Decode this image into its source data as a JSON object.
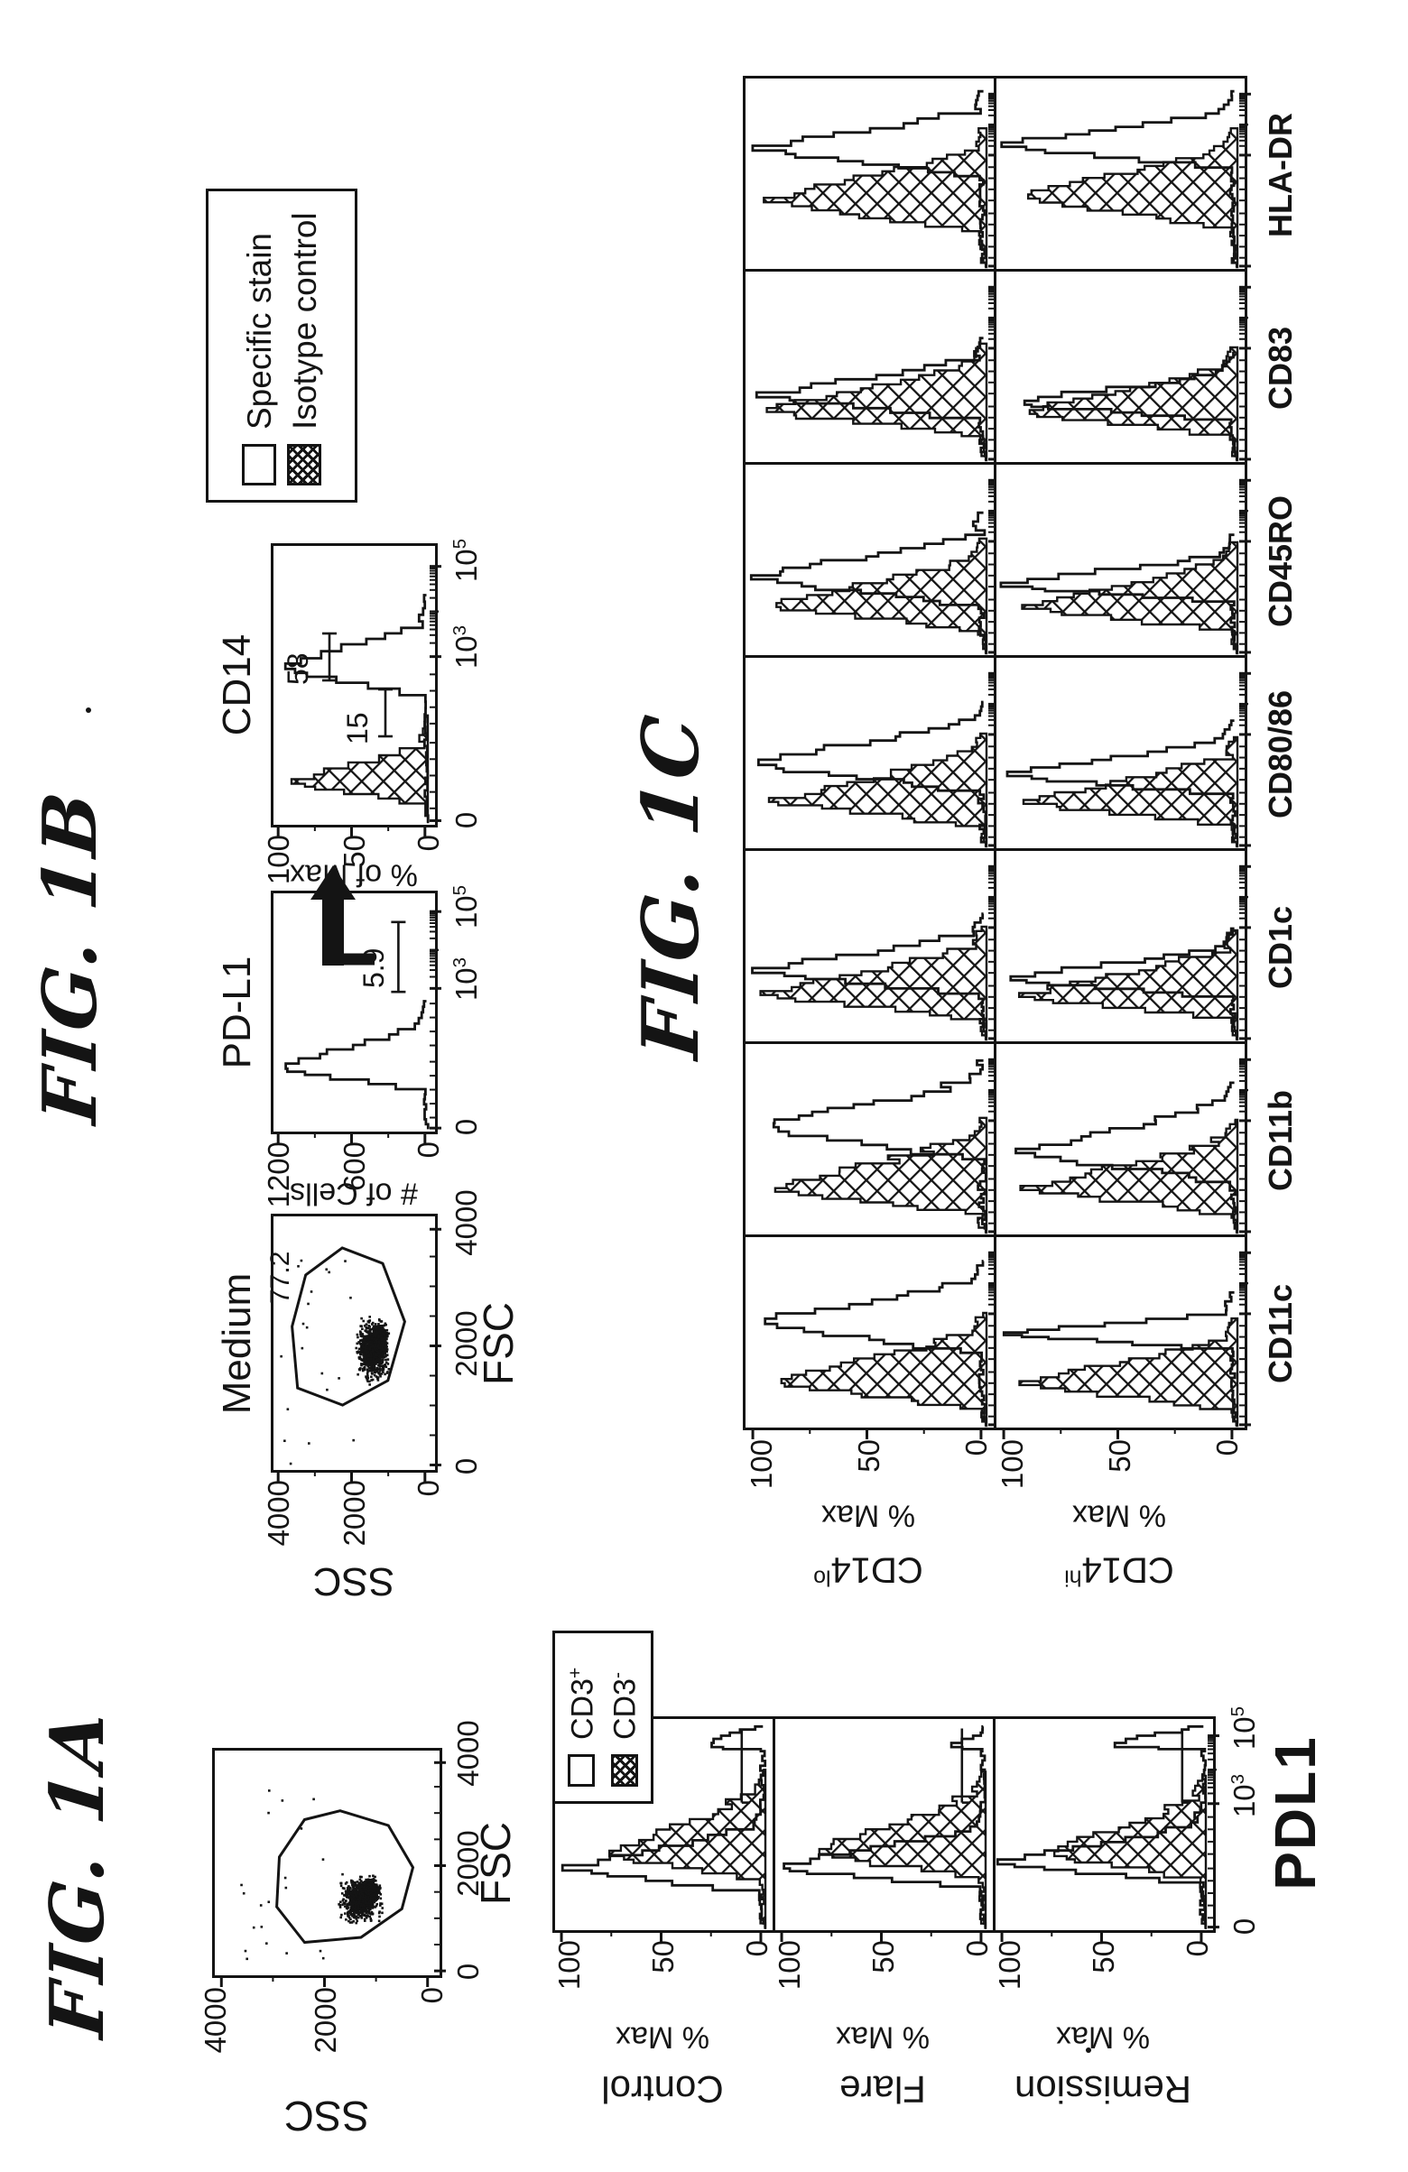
{
  "page": {
    "kind": "scanned patent figure sheet",
    "orientation": "figure rotated 90deg CCW on portrait page",
    "ink": "#141414",
    "paper": "#ffffff"
  },
  "figures": {
    "fig1a": {
      "label": "FIG. 1A",
      "scatter": {
        "xlabel": "FSC",
        "ylabel": "SSC",
        "xticks": [
          "0",
          "2000",
          "4000"
        ],
        "yticks": [
          "4000",
          "2000",
          "0"
        ]
      },
      "legend": {
        "items": [
          {
            "swatch": "open",
            "text": "CD3",
            "sup": "+"
          },
          {
            "swatch": "hatch",
            "text": "CD3",
            "sup": "-"
          }
        ]
      },
      "panels": [
        {
          "name": "Control"
        },
        {
          "name": "Flare"
        },
        {
          "name": "Remission"
        }
      ],
      "ylabel": "% Max",
      "yticks": [
        "100",
        "50",
        "0"
      ],
      "xticks": [
        {
          "t": "0"
        },
        {
          "t": "10",
          "sup": "3"
        },
        {
          "t": "10",
          "sup": "5"
        }
      ],
      "xlabel": "PDL1"
    },
    "fig1b": {
      "label": "FIG. 1B",
      "medium": {
        "title": "Medium",
        "xlabel": "FSC",
        "ylabel": "SSC",
        "xticks": [
          "0",
          "2000",
          "4000"
        ],
        "yticks": [
          "4000",
          "2000",
          "0"
        ],
        "gate_percent": "77.2"
      },
      "pdl1": {
        "title": "PD-L1",
        "ylabel": "# of Cells",
        "yticks": [
          "1200",
          "600",
          "0"
        ],
        "xticks": [
          {
            "t": "0"
          },
          {
            "t": "10",
            "sup": "3"
          },
          {
            "t": "10",
            "sup": "5"
          }
        ],
        "positive_percent": "5.9"
      },
      "cd14": {
        "title": "CD14",
        "ylabel": "% of Max",
        "yticks": [
          "100",
          "50",
          "0"
        ],
        "xticks": [
          {
            "t": "0"
          },
          {
            "t": "10",
            "sup": "3"
          },
          {
            "t": "10",
            "sup": "5"
          }
        ],
        "annotations": [
          {
            "value": "58"
          },
          {
            "value": "15"
          }
        ]
      },
      "legend": {
        "items": [
          {
            "swatch": "open",
            "text": "Specific stain"
          },
          {
            "swatch": "hatch",
            "text": "Isotype control"
          }
        ]
      }
    },
    "fig1c": {
      "label": "FIG. 1C",
      "columns": [
        "CD11c",
        "CD11b",
        "CD1c",
        "CD80/86",
        "CD45RO",
        "CD83",
        "HLA-DR"
      ],
      "rows": [
        {
          "text": "CD14",
          "sup": "lo",
          "ylabel": "% Max"
        },
        {
          "text": "CD14",
          "sup": "hi",
          "ylabel": "% Max"
        }
      ],
      "yticks": [
        "100",
        "50",
        "0"
      ]
    }
  },
  "chart_data": [
    {
      "id": "fig1a-scatter",
      "type": "scatter",
      "xlabel": "FSC",
      "ylabel": "SSC",
      "xlim": [
        0,
        4000
      ],
      "ylim": [
        0,
        4000
      ],
      "cluster": {
        "cx": 0.34,
        "cy": 0.66,
        "sx": 0.13,
        "sy": 0.11,
        "n": 850
      },
      "gate": [
        [
          16,
          40
        ],
        [
          32,
          28
        ],
        [
          54,
          30
        ],
        [
          70,
          40
        ],
        [
          76,
          58
        ],
        [
          68,
          80
        ],
        [
          50,
          90
        ],
        [
          30,
          86
        ],
        [
          18,
          66
        ]
      ]
    },
    {
      "id": "fig1b-medium-scatter",
      "type": "scatter",
      "title": "Medium",
      "xlabel": "FSC",
      "ylabel": "SSC",
      "xlim": [
        0,
        4000
      ],
      "ylim": [
        0,
        4000
      ],
      "cluster": {
        "cx": 0.48,
        "cy": 0.63,
        "sx": 0.15,
        "sy": 0.12,
        "n": 950
      },
      "gate": [
        [
          34,
          16
        ],
        [
          58,
          11
        ],
        [
          79,
          21
        ],
        [
          89,
          44
        ],
        [
          83,
          70
        ],
        [
          60,
          84
        ],
        [
          37,
          74
        ],
        [
          27,
          44
        ]
      ],
      "gate_label": "77.2"
    },
    {
      "id": "fig1b-pdl1",
      "type": "histogram",
      "title": "PD-L1",
      "x_axis": [
        "0",
        "10^3",
        "10^5"
      ],
      "y_axis": [
        "0",
        "600",
        "1200"
      ],
      "open": [
        27,
        11,
        17,
        95
      ],
      "positive_percent": 5.9,
      "bracket_pct": [
        60,
        90,
        80
      ]
    },
    {
      "id": "fig1b-cd14",
      "type": "histogram-overlay",
      "title": "CD14",
      "x_axis": [
        "0",
        "10^3",
        "10^5"
      ],
      "y_axis": [
        "0",
        "50",
        "100"
      ],
      "open": [
        57,
        12,
        15,
        94
      ],
      "hatch": [
        15,
        9,
        13,
        88
      ],
      "annotations": [
        {
          "value": 58,
          "x": 52,
          "y": 12
        },
        {
          "value": 15,
          "x": 32,
          "y": 46
        }
      ]
    },
    {
      "id": "fig1a-pdl1-panels",
      "type": "histogram-overlay",
      "series": [
        "CD3+",
        "CD3-"
      ],
      "x_axis": [
        "0",
        "10^3",
        "10^5"
      ],
      "y_axis": [
        "0",
        "50",
        "100"
      ],
      "bracket_pct": [
        62,
        98,
        88
      ],
      "panels": [
        {
          "name": "Control",
          "o": [
            29,
            12,
            20,
            95
          ],
          "h": [
            36,
            14,
            30,
            72
          ],
          "rspike": 30
        },
        {
          "name": "Flare",
          "o": [
            30,
            11,
            18,
            97
          ],
          "h": [
            37,
            14,
            28,
            80
          ],
          "rspike": 12
        },
        {
          "name": "Remission",
          "o": [
            32,
            11,
            18,
            96
          ],
          "h": [
            36,
            13,
            27,
            76
          ],
          "rspike": 40
        }
      ]
    },
    {
      "id": "fig1c-grid",
      "type": "histogram-overlay-grid",
      "series": [
        "Specific stain",
        "Isotype control"
      ],
      "x_axis_per_cell": "log fluorescence",
      "y_axis": [
        "0",
        "50",
        "100"
      ],
      "cells": [
        {
          "col": "CD11c",
          "lo": {
            "h": [
              24,
              16,
              26,
              86
            ],
            "o": [
              56,
              18,
              22,
              93
            ],
            "jag": 10
          },
          "hi": {
            "h": [
              23,
              15,
              24,
              88
            ],
            "o": [
              50,
              9,
              11,
              97
            ],
            "jag": 7
          }
        },
        {
          "col": "CD11b",
          "lo": {
            "h": [
              25,
              16,
              26,
              88
            ],
            "o": [
              58,
              20,
              24,
              90
            ],
            "jag": 15
          },
          "hi": {
            "h": [
              24,
              15,
              26,
              86
            ],
            "o": [
              44,
              18,
              26,
              88
            ],
            "jag": 12
          }
        },
        {
          "col": "CD1c",
          "lo": {
            "h": [
              25,
              15,
              25,
              90
            ],
            "o": [
              37,
              14,
              20,
              94
            ],
            "jag": 9
          },
          "hi": {
            "h": [
              24,
              14,
              24,
              88
            ],
            "o": [
              33,
              11,
              16,
              93
            ],
            "jag": 8
          }
        },
        {
          "col": "CD80/86",
          "lo": {
            "h": [
              25,
              15,
              25,
              88
            ],
            "o": [
              45,
              16,
              22,
              95
            ],
            "jag": 13
          },
          "hi": {
            "h": [
              24,
              14,
              24,
              86
            ],
            "o": [
              39,
              12,
              18,
              94
            ],
            "jag": 9
          }
        },
        {
          "col": "CD45RO",
          "lo": {
            "h": [
              26,
              15,
              25,
              88
            ],
            "o": [
              41,
              16,
              24,
              94
            ],
            "jag": 11
          },
          "hi": {
            "h": [
              25,
              14,
              24,
              87
            ],
            "o": [
              37,
              10,
              16,
              96
            ],
            "jag": 8
          }
        },
        {
          "col": "CD83",
          "lo": {
            "h": [
              27,
              15,
              25,
              90
            ],
            "o": [
              35,
              14,
              20,
              92
            ],
            "jag": 9
          },
          "hi": {
            "h": [
              26,
              14,
              24,
              88
            ],
            "o": [
              31,
              10,
              16,
              90
            ],
            "jag": 8
          }
        },
        {
          "col": "HLA-DR",
          "lo": {
            "h": [
              36,
              18,
              28,
              88
            ],
            "o": [
              64,
              16,
              20,
              94
            ],
            "jag": 9
          },
          "hi": {
            "h": [
              38,
              18,
              26,
              90
            ],
            "o": [
              66,
              14,
              18,
              96
            ],
            "jag": 8
          }
        }
      ]
    }
  ]
}
